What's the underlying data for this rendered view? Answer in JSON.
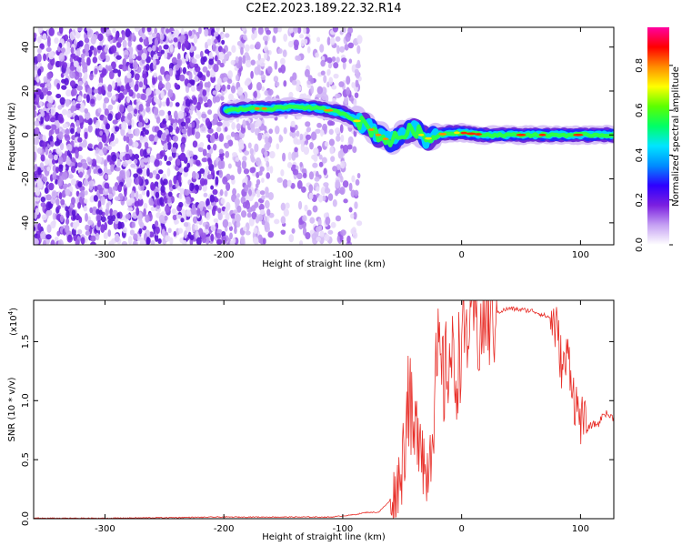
{
  "title": "C2E2.2023.189.22.32.R14",
  "colors": {
    "snr_line": "#e8302a",
    "frame": "#000000"
  },
  "colorbar": {
    "label": "Normalized spectral amplitude",
    "ticks": [
      "0.0",
      "0.2",
      "0.4",
      "0.6",
      "0.8"
    ],
    "tick_values": [
      0.0,
      0.2,
      0.4,
      0.6,
      0.8
    ],
    "range": [
      0.0,
      0.97
    ],
    "colormap": [
      "#ffffff",
      "#c5a0f3",
      "#7b1fe0",
      "#2e00ff",
      "#008cff",
      "#00e5ff",
      "#00ff66",
      "#5cff00",
      "#ffff00",
      "#ff8c00",
      "#ff0000",
      "#ff00a0"
    ]
  },
  "chart_data": [
    {
      "type": "heatmap",
      "xlabel": "Height of straight line (km)",
      "ylabel": "Frequency (Hz)",
      "xlim": [
        -360,
        128
      ],
      "ylim": [
        -50,
        49
      ],
      "xticks": [
        -300,
        -200,
        -100,
        0,
        100
      ],
      "xtick_labels": [
        "-300",
        "-200",
        "-100",
        "0",
        "100"
      ],
      "yticks": [
        -40,
        -20,
        0,
        20,
        40
      ],
      "ytick_labels": [
        "-40",
        "-20",
        "0",
        "20",
        "40"
      ],
      "ridge": {
        "x": [
          -198,
          -180,
          -160,
          -140,
          -120,
          -100,
          -90,
          -80,
          -70,
          -60,
          -50,
          -40,
          -30,
          -20,
          -10,
          0,
          20,
          40,
          60,
          80,
          100,
          128
        ],
        "y": [
          11,
          12,
          12,
          13,
          12,
          10,
          7,
          4,
          0,
          -3,
          0,
          3,
          -2,
          0,
          1,
          1,
          0,
          0,
          0,
          0,
          0,
          0
        ]
      }
    },
    {
      "type": "line",
      "xlabel": "Height of straight line (km)",
      "ylabel": "SNR (10 * v/v)",
      "y_scale_label": "(x10",
      "y_scale_exponent": "4",
      "y_scale_close": ")",
      "xlim": [
        -360,
        128
      ],
      "ylim": [
        0,
        1.85
      ],
      "xticks": [
        -300,
        -200,
        -100,
        0,
        100
      ],
      "xtick_labels": [
        "-300",
        "-200",
        "-100",
        "0",
        "100"
      ],
      "yticks": [
        0.0,
        0.5,
        1.0,
        1.5
      ],
      "ytick_labels": [
        "0.0",
        "0.5",
        "1.0",
        "1.5"
      ],
      "series": [
        {
          "x": [
            -360,
            -300,
            -200,
            -150,
            -110,
            -100,
            -90,
            -80,
            -70,
            -60,
            -55,
            -50,
            -45,
            -40,
            -35,
            -30,
            -25,
            -20,
            -15,
            -10,
            -5,
            0,
            5,
            10,
            15,
            20,
            25,
            30,
            40,
            50,
            60,
            70,
            75,
            80,
            85,
            90,
            95,
            100,
            105,
            110,
            115,
            120,
            128
          ],
          "y": [
            0.0,
            0.0,
            0.01,
            0.01,
            0.01,
            0.02,
            0.03,
            0.05,
            0.05,
            0.15,
            0.25,
            0.45,
            1.1,
            0.6,
            0.9,
            0.3,
            0.8,
            1.35,
            1.15,
            1.4,
            1.2,
            1.5,
            1.6,
            1.8,
            1.55,
            1.72,
            1.65,
            1.75,
            1.78,
            1.77,
            1.76,
            1.72,
            1.7,
            1.6,
            1.25,
            1.4,
            1.0,
            0.85,
            0.75,
            0.8,
            0.8,
            0.9,
            0.85
          ]
        }
      ]
    }
  ]
}
